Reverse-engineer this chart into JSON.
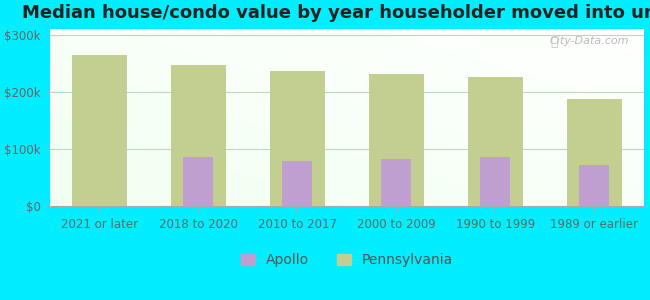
{
  "title": "Median house/condo value by year householder moved into unit",
  "categories": [
    "2021 or later",
    "2018 to 2020",
    "2010 to 2017",
    "2000 to 2009",
    "1990 to 1999",
    "1989 or earlier"
  ],
  "apollo_values": [
    null,
    85000,
    78000,
    82000,
    85000,
    72000
  ],
  "pennsylvania_values": [
    265000,
    248000,
    237000,
    232000,
    226000,
    188000
  ],
  "apollo_color": "#bf9fd0",
  "pennsylvania_color": "#c2cf90",
  "background_outer": "#00eeff",
  "background_inner_top": "#e8f5e8",
  "background_inner_bottom": "#d0eed8",
  "ylim": [
    0,
    310000
  ],
  "yticks": [
    0,
    100000,
    200000,
    300000
  ],
  "ytick_labels": [
    "$0",
    "$100k",
    "$200k",
    "$300k"
  ],
  "bar_width": 0.55,
  "title_fontsize": 13,
  "tick_fontsize": 8.5,
  "legend_fontsize": 10,
  "watermark": "City-Data.com"
}
